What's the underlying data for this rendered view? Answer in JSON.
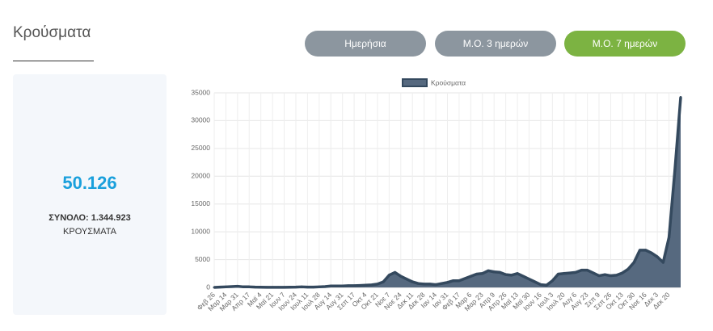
{
  "header": {
    "title": "Κρούσματα"
  },
  "buttons": [
    "Ημερήσια",
    "Μ.Ο. 3 ημερών",
    "Μ.Ο. 7 ημερών"
  ],
  "stats": {
    "value": "50.126",
    "total": "ΣΥΝΟΛΟ: 1.344.923",
    "label": "ΚΡΟΥΣΜΑΤΑ"
  },
  "chart_data": {
    "type": "area",
    "categories": [
      "Φεβ 26",
      null,
      "Μαρ 14",
      null,
      "Μαρ 31",
      null,
      "Απρ 17",
      null,
      "Μαϊ 4",
      null,
      "Μαϊ 21",
      null,
      "Ιουν 7",
      null,
      "Ιουν 24",
      null,
      "Ιουλ 11",
      null,
      "Ιουλ 28",
      null,
      "Αυγ 14",
      null,
      "Αυγ 31",
      null,
      "Σεπ 17",
      null,
      "Οκτ 4",
      null,
      "Οκτ 21",
      null,
      "Νοε 7",
      null,
      "Νοε 24",
      null,
      "Δεκ 11",
      null,
      "Δεκ 28",
      null,
      "Ιαν 14",
      null,
      "Ιαν 31",
      null,
      "Φεβ 17",
      null,
      "Μαρ 6",
      null,
      "Μαρ 23",
      null,
      "Απρ 9",
      null,
      "Απρ 26",
      null,
      "Μαϊ 13",
      null,
      "Μαϊ 30",
      null,
      "Ιουν 16",
      null,
      "Ιουλ 3",
      null,
      "Ιουλ 20",
      null,
      "Αυγ 6",
      null,
      "Αυγ 23",
      null,
      "Σεπ 9",
      null,
      "Σεπ 26",
      null,
      "Οκτ 13",
      null,
      "Οκτ 30",
      null,
      "Νοε 16",
      null,
      "Δεκ 3",
      null,
      "Δεκ 20",
      null,
      null
    ],
    "series": [
      {
        "name": "Κρούσματα",
        "color": "#34495e",
        "fill": "#56697f",
        "values": [
          0,
          50,
          100,
          150,
          200,
          100,
          100,
          50,
          30,
          20,
          20,
          20,
          20,
          30,
          50,
          100,
          50,
          50,
          100,
          150,
          250,
          250,
          250,
          300,
          300,
          350,
          400,
          450,
          600,
          1000,
          2200,
          2700,
          2000,
          1500,
          1000,
          700,
          600,
          600,
          500,
          700,
          900,
          1200,
          1200,
          1600,
          2000,
          2400,
          2500,
          3000,
          2800,
          2700,
          2300,
          2200,
          2500,
          2000,
          1500,
          1000,
          500,
          400,
          1200,
          2400,
          2500,
          2600,
          2700,
          3100,
          3100,
          2600,
          2100,
          2300,
          2100,
          2200,
          2600,
          3300,
          4500,
          6700,
          6700,
          6200,
          5500,
          4500,
          9000,
          21000,
          34200
        ]
      }
    ],
    "ylim": [
      0,
      35000
    ],
    "yticks": [
      0,
      5000,
      10000,
      15000,
      20000,
      25000,
      30000,
      35000
    ],
    "grid": true
  }
}
